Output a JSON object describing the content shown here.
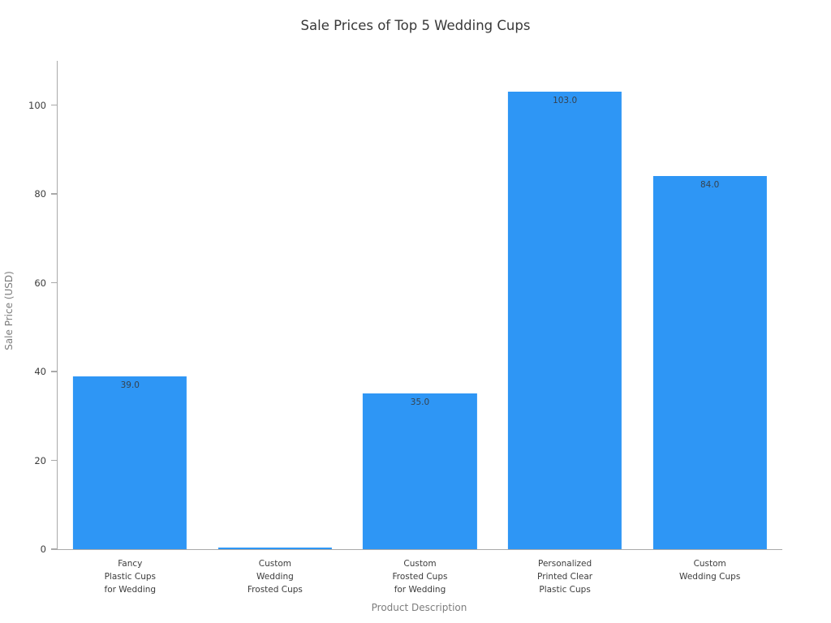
{
  "chart_data": {
    "type": "bar",
    "title": "Sale Prices of Top 5 Wedding Cups",
    "xlabel": "Product Description",
    "ylabel": "Sale Price (USD)",
    "categories": [
      "Fancy\nPlastic Cups\nfor Wedding",
      "Custom\nWedding\nFrosted Cups",
      "Custom\nFrosted Cups\nfor Wedding",
      "Personalized\nPrinted Clear\nPlastic Cups",
      "Custom\nWedding Cups"
    ],
    "values": [
      39.0,
      0.2,
      35.0,
      103.0,
      84.0
    ],
    "bar_labels": [
      "39.0",
      "",
      "35.0",
      "103.0",
      "84.0"
    ],
    "yticks": [
      0,
      20,
      40,
      60,
      80,
      100
    ],
    "ylim": [
      0,
      110
    ],
    "grid": false,
    "legend": null,
    "bar_color": "#2e96f5"
  }
}
